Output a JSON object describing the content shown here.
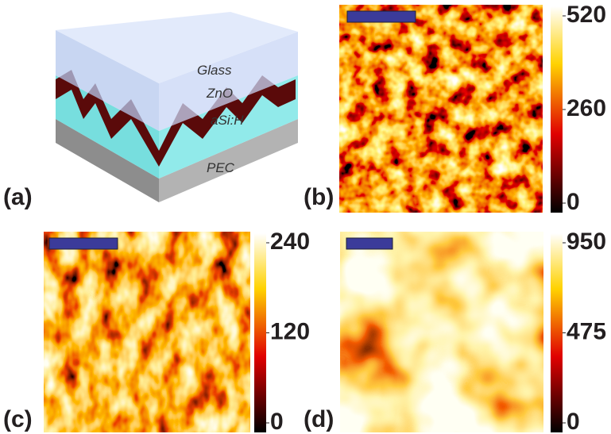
{
  "panels": [
    {
      "label": "(a)",
      "layers": [
        "Glass",
        "ZnO",
        "aSi:H",
        "PEC"
      ]
    },
    {
      "label": "(b)",
      "colorbar": {
        "range": [
          0,
          520
        ],
        "ticks": [
          0,
          260,
          520
        ]
      }
    },
    {
      "label": "(c)",
      "colorbar": {
        "range": [
          0,
          240
        ],
        "ticks": [
          0,
          120,
          240
        ]
      }
    },
    {
      "label": "(d)",
      "colorbar": {
        "range": [
          0,
          950
        ],
        "ticks": [
          0,
          475,
          950
        ]
      }
    }
  ]
}
